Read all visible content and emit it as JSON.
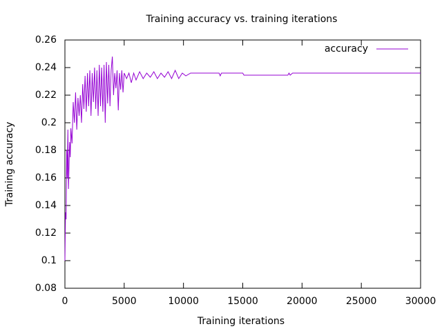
{
  "chart_data": {
    "type": "line",
    "title": "Training accuracy vs. training iterations",
    "xlabel": "Training iterations",
    "ylabel": "Training accuracy",
    "x": [
      0,
      50,
      100,
      150,
      200,
      250,
      300,
      350,
      400,
      450,
      500,
      600,
      700,
      800,
      900,
      1000,
      1100,
      1200,
      1300,
      1400,
      1500,
      1600,
      1700,
      1800,
      1900,
      2000,
      2100,
      2200,
      2300,
      2400,
      2500,
      2600,
      2700,
      2800,
      2900,
      3000,
      3100,
      3200,
      3300,
      3400,
      3500,
      3600,
      3700,
      3800,
      3900,
      4000,
      4100,
      4200,
      4300,
      4400,
      4500,
      4600,
      4700,
      4800,
      4900,
      5000,
      5200,
      5400,
      5600,
      5800,
      6000,
      6300,
      6600,
      6900,
      7200,
      7500,
      7800,
      8100,
      8400,
      8700,
      9000,
      9300,
      9600,
      9900,
      10200,
      10600,
      11000,
      13000,
      13100,
      13200,
      15000,
      15100,
      18800,
      18900,
      19000,
      19200,
      19400,
      30000
    ],
    "series": [
      {
        "name": "accuracy",
        "color": "#9400d3",
        "values": [
          0.1,
          0.135,
          0.13,
          0.18,
          0.16,
          0.195,
          0.152,
          0.17,
          0.186,
          0.175,
          0.196,
          0.185,
          0.215,
          0.2,
          0.222,
          0.195,
          0.218,
          0.205,
          0.22,
          0.2,
          0.228,
          0.21,
          0.234,
          0.208,
          0.236,
          0.212,
          0.238,
          0.205,
          0.236,
          0.215,
          0.24,
          0.21,
          0.238,
          0.205,
          0.242,
          0.212,
          0.24,
          0.208,
          0.242,
          0.2,
          0.244,
          0.214,
          0.242,
          0.212,
          0.238,
          0.248,
          0.22,
          0.236,
          0.225,
          0.238,
          0.209,
          0.236,
          0.224,
          0.238,
          0.222,
          0.236,
          0.232,
          0.236,
          0.229,
          0.236,
          0.231,
          0.237,
          0.232,
          0.236,
          0.233,
          0.237,
          0.232,
          0.236,
          0.233,
          0.237,
          0.232,
          0.238,
          0.232,
          0.236,
          0.234,
          0.236,
          0.236,
          0.236,
          0.234,
          0.236,
          0.236,
          0.2345,
          0.2345,
          0.236,
          0.2345,
          0.236,
          0.236,
          0.236
        ]
      }
    ],
    "xlim": [
      0,
      30000
    ],
    "xticks": [
      0,
      5000,
      10000,
      15000,
      20000,
      25000,
      30000
    ],
    "ylim": [
      0.08,
      0.26
    ],
    "yticks": [
      0.08,
      0.1,
      0.12,
      0.14,
      0.16,
      0.18,
      0.2,
      0.22,
      0.24,
      0.26
    ],
    "legend": "top-right"
  }
}
